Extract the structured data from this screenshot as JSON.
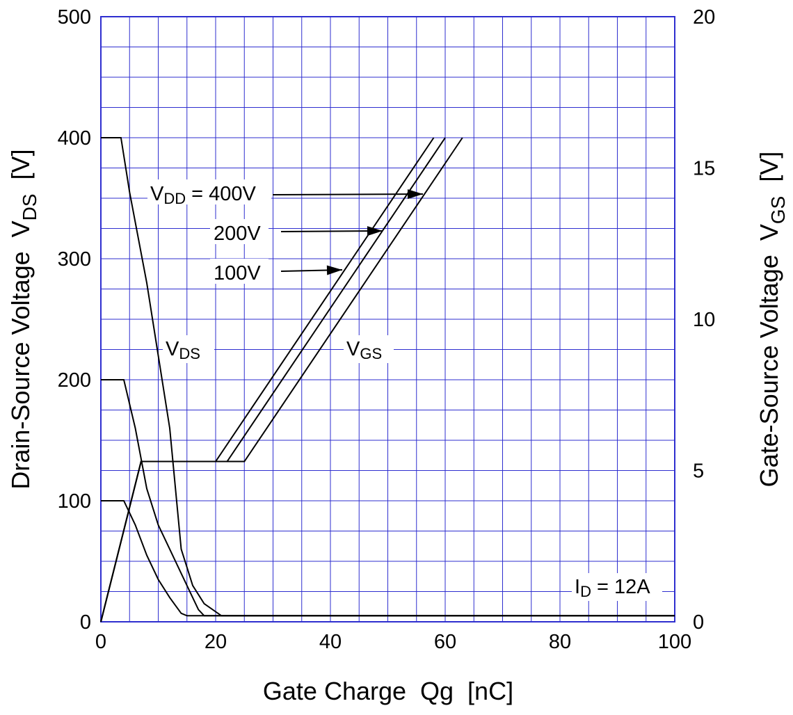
{
  "chart_data": {
    "type": "line",
    "xlabel": "Gate Charge  Qg  [nC]",
    "ylabel_left": {
      "main": "Drain-Source Voltage  V",
      "sub": "DS",
      "unit": "  [V]"
    },
    "ylabel_right": {
      "main": "Gate-Source Voltage  V",
      "sub": "GS",
      "unit": "  [V]"
    },
    "xlim": [
      0,
      100
    ],
    "ylim_left": [
      0,
      500
    ],
    "ylim_right": [
      0,
      20
    ],
    "x_ticks": [
      0,
      20,
      40,
      60,
      80,
      100
    ],
    "y_left_ticks": [
      0,
      100,
      200,
      300,
      400,
      500
    ],
    "y_right_ticks": [
      0,
      5,
      10,
      15,
      20
    ],
    "grid": true,
    "grid_color": "#2e2ecf",
    "line_color": "#000000",
    "series": [
      {
        "name": "400V",
        "axis": "left",
        "kind": "VDS",
        "points": [
          [
            0,
            400
          ],
          [
            3.5,
            400
          ],
          [
            5,
            355
          ],
          [
            8,
            280
          ],
          [
            10,
            220
          ],
          [
            12,
            160
          ],
          [
            14,
            60
          ],
          [
            15,
            45
          ],
          [
            16,
            30
          ],
          [
            18,
            15
          ],
          [
            21,
            5
          ],
          [
            100,
            5
          ]
        ]
      },
      {
        "name": "200V",
        "axis": "left",
        "kind": "VDS",
        "points": [
          [
            0,
            200
          ],
          [
            4,
            200
          ],
          [
            6,
            160
          ],
          [
            8,
            110
          ],
          [
            10,
            80
          ],
          [
            12,
            60
          ],
          [
            14,
            40
          ],
          [
            16,
            20
          ],
          [
            17,
            10
          ],
          [
            18,
            5
          ],
          [
            100,
            5
          ]
        ]
      },
      {
        "name": "100V",
        "axis": "left",
        "kind": "VDS",
        "points": [
          [
            0,
            100
          ],
          [
            4,
            100
          ],
          [
            6,
            80
          ],
          [
            8,
            55
          ],
          [
            10,
            35
          ],
          [
            12,
            20
          ],
          [
            14,
            7
          ],
          [
            15,
            5
          ],
          [
            100,
            5
          ]
        ]
      },
      {
        "name": "100V",
        "axis": "right",
        "kind": "VGS",
        "points": [
          [
            0,
            0
          ],
          [
            7,
            5.3
          ],
          [
            20,
            5.3
          ],
          [
            58,
            16
          ]
        ]
      },
      {
        "name": "200V",
        "axis": "right",
        "kind": "VGS",
        "points": [
          [
            0,
            0
          ],
          [
            7,
            5.3
          ],
          [
            22,
            5.3
          ],
          [
            60,
            16
          ]
        ]
      },
      {
        "name": "400V",
        "axis": "right",
        "kind": "VGS",
        "points": [
          [
            0,
            0
          ],
          [
            7,
            5.3
          ],
          [
            25,
            5.3
          ],
          [
            63,
            16
          ]
        ]
      }
    ],
    "annotations": {
      "vdd_prefix": "V",
      "vdd_sub": "DD",
      "vdd_suffix": " = 400V",
      "label_200": "200V",
      "label_100": "100V",
      "vds_main": "V",
      "vds_sub": "DS",
      "vgs_main": "V",
      "vgs_sub": "GS",
      "id_main": "I",
      "id_sub": "D",
      "id_suffix": " = 12A"
    }
  }
}
